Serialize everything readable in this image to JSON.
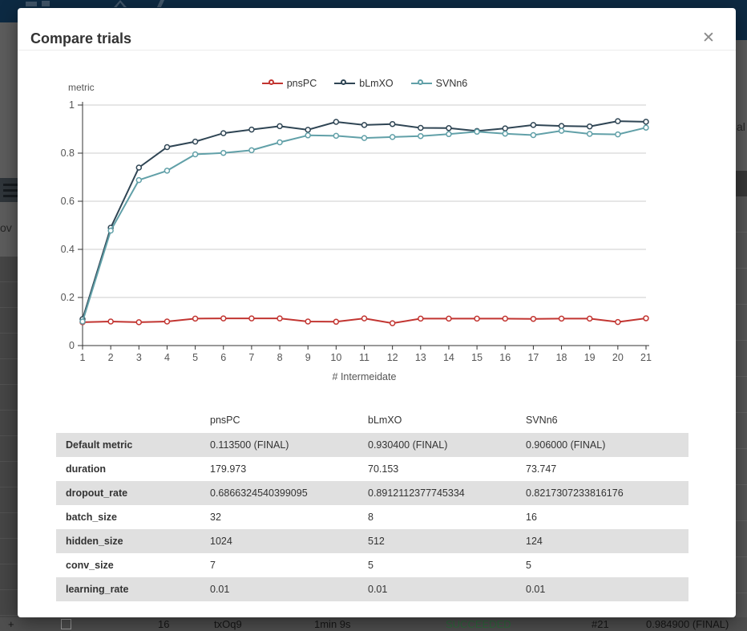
{
  "modal": {
    "title": "Compare trials",
    "close_label": "✕"
  },
  "chart_data": {
    "type": "line",
    "title": "",
    "ylabel": "metric",
    "xlabel": "# Intermeidate",
    "x": [
      1,
      2,
      3,
      4,
      5,
      6,
      7,
      8,
      9,
      10,
      11,
      12,
      13,
      14,
      15,
      16,
      17,
      18,
      19,
      20,
      21
    ],
    "ylim": [
      0,
      1
    ],
    "yticks": [
      0,
      0.2,
      0.4,
      0.6,
      0.8,
      1
    ],
    "grid": true,
    "legend_position": "top",
    "series": [
      {
        "name": "pnsPC",
        "color": "#c23531",
        "values": [
          0.097,
          0.1,
          0.097,
          0.1,
          0.112,
          0.113,
          0.113,
          0.113,
          0.1,
          0.099,
          0.113,
          0.093,
          0.112,
          0.112,
          0.112,
          0.112,
          0.111,
          0.112,
          0.112,
          0.098,
          0.1135
        ]
      },
      {
        "name": "bLmXO",
        "color": "#2f4554",
        "values": [
          0.11,
          0.49,
          0.74,
          0.825,
          0.848,
          0.883,
          0.898,
          0.912,
          0.897,
          0.93,
          0.917,
          0.921,
          0.905,
          0.904,
          0.892,
          0.903,
          0.917,
          0.913,
          0.911,
          0.933,
          0.9304
        ]
      },
      {
        "name": "SVNn6",
        "color": "#61a0a8",
        "values": [
          0.1,
          0.478,
          0.688,
          0.727,
          0.795,
          0.801,
          0.812,
          0.845,
          0.874,
          0.872,
          0.863,
          0.867,
          0.871,
          0.879,
          0.889,
          0.881,
          0.875,
          0.893,
          0.88,
          0.878,
          0.906
        ]
      }
    ]
  },
  "table": {
    "columns": [
      "",
      "pnsPC",
      "bLmXO",
      "SVNn6"
    ],
    "rows": [
      {
        "label": "Default metric",
        "values": [
          "0.113500 (FINAL)",
          "0.930400 (FINAL)",
          "0.906000 (FINAL)"
        ]
      },
      {
        "label": "duration",
        "values": [
          "179.973",
          "70.153",
          "73.747"
        ]
      },
      {
        "label": "dropout_rate",
        "values": [
          "0.6866324540399095",
          "0.8912112377745334",
          "0.8217307233816176"
        ]
      },
      {
        "label": "batch_size",
        "values": [
          "32",
          "8",
          "16"
        ]
      },
      {
        "label": "hidden_size",
        "values": [
          "1024",
          "512",
          "124"
        ]
      },
      {
        "label": "conv_size",
        "values": [
          "7",
          "5",
          "5"
        ]
      },
      {
        "label": "learning_rate",
        "values": [
          "0.01",
          "0.01",
          "0.01"
        ]
      }
    ]
  },
  "background": {
    "partial_left_text": "ov",
    "partial_right_text": "al",
    "expand_icon": "+",
    "bottom_row": {
      "sequence_id": "16",
      "trial_id": "txOq9",
      "duration": "1min 9s",
      "status": "SUCCEEDED",
      "status_color": "#2e6b3d",
      "intermediate_count": "#21",
      "default_metric": "0.984900 (FINAL)"
    }
  }
}
